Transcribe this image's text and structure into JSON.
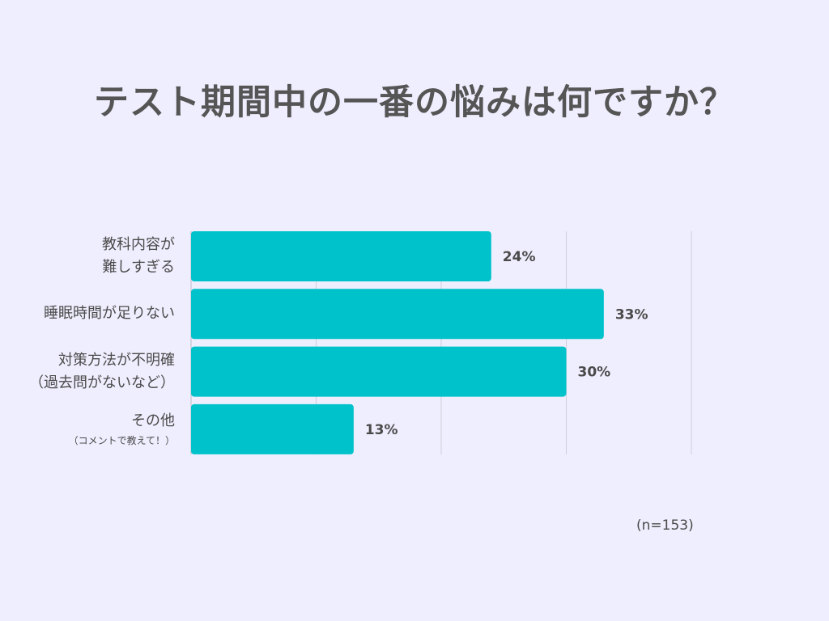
{
  "chart_data": {
    "type": "bar",
    "orientation": "horizontal",
    "title": "テスト期間中の一番の悩みは何ですか？",
    "categories": [
      {
        "line1": "教科内容が",
        "line2": "難しすぎる",
        "line2_small": false
      },
      {
        "line1": "睡眠時間が足りない",
        "line2": "",
        "line2_small": false
      },
      {
        "line1": "対策方法が不明確",
        "line2": "（過去問がないなど）",
        "line2_small": false
      },
      {
        "line1": "その他",
        "line2": "（コメントで教えて！）",
        "line2_small": true
      }
    ],
    "values": [
      24,
      33,
      30,
      13
    ],
    "value_labels": [
      "24%",
      "33%",
      "30%",
      "13%"
    ],
    "xlim": [
      0,
      40
    ],
    "grid": true,
    "bar_color": "#00c2ca",
    "grid_color": "#cfcfda",
    "note": "(n=153)"
  }
}
